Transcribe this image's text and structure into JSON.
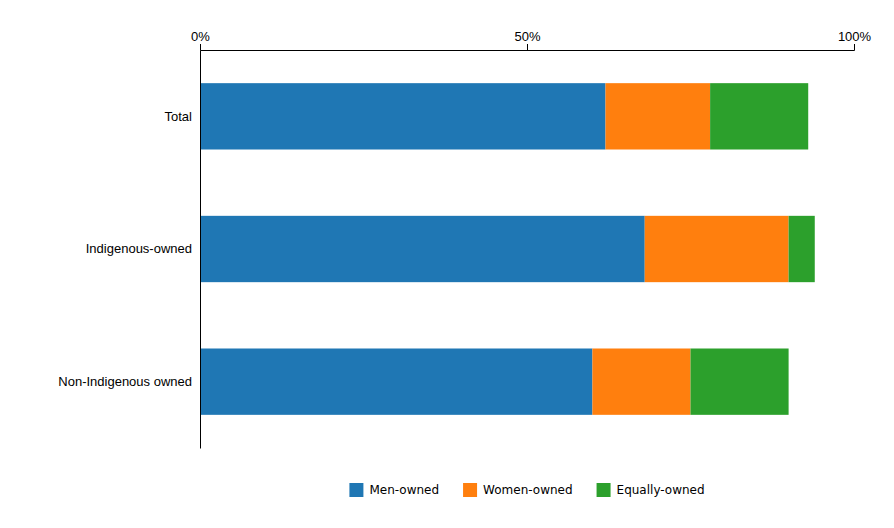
{
  "chart_data": {
    "type": "bar",
    "orientation": "horizontal",
    "stacked": true,
    "categories": [
      "Non-Indigenous owned",
      "Indigenous-owned",
      "Total"
    ],
    "series": [
      {
        "name": "Men-owned",
        "values": [
          60,
          68,
          62
        ]
      },
      {
        "name": "Women-owned",
        "values": [
          15,
          22,
          16
        ]
      },
      {
        "name": "Equally-owned",
        "values": [
          15,
          4,
          15
        ]
      }
    ],
    "xlim": [
      0,
      100
    ],
    "xticks": [
      {
        "value": 0,
        "label": "0%"
      },
      {
        "value": 50,
        "label": "50%"
      },
      {
        "value": 100,
        "label": "100%"
      }
    ],
    "grid": false,
    "legend": "bottom"
  }
}
